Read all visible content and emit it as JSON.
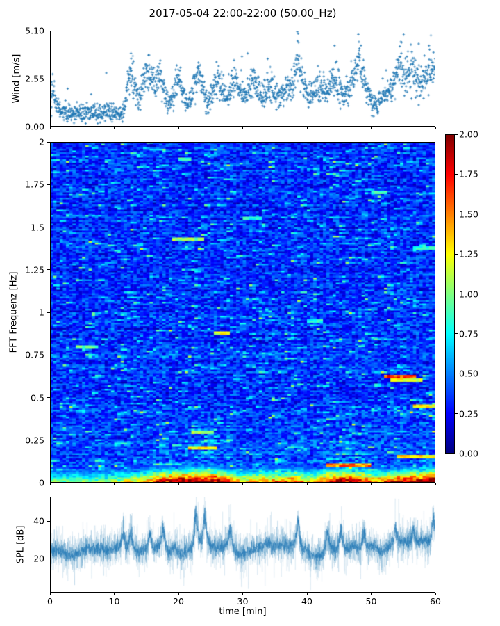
{
  "title": "2017-05-04 22:00-22:00 (50.00_Hz)",
  "colors": {
    "background": "#ffffff",
    "marker": "#1f77b4",
    "spl_line": "#1f77b4",
    "axis": "#000000",
    "text": "#000000"
  },
  "axes": {
    "wind": {
      "ylabel": "Wind [m/s]",
      "ytick_labels": [
        "0.00",
        "2.55",
        "5.10"
      ],
      "ytick_values": [
        0,
        2.55,
        5.1
      ],
      "ylim": [
        0,
        5.1
      ],
      "xlim": [
        0,
        60
      ],
      "xtick_values": [
        0,
        10,
        20,
        30,
        40,
        50,
        60
      ]
    },
    "fft": {
      "ylabel": "FFT Frequenz [Hz]",
      "ytick_labels": [
        "0",
        "0.25",
        "0.5",
        "0.75",
        "1",
        "1.25",
        "1.5",
        "1.75",
        "2"
      ],
      "ytick_values": [
        0,
        0.25,
        0.5,
        0.75,
        1,
        1.25,
        1.5,
        1.75,
        2
      ],
      "ylim": [
        0,
        2
      ],
      "xlim": [
        0,
        60
      ],
      "xtick_values": [
        0,
        10,
        20,
        30,
        40,
        50,
        60
      ]
    },
    "spl": {
      "ylabel": "SPL [dB]",
      "xlabel": "time [min]",
      "ytick_labels": [
        "20",
        "40"
      ],
      "ytick_values": [
        20,
        40
      ],
      "ylim": [
        2,
        53
      ],
      "xlim": [
        0,
        60
      ],
      "xtick_labels": [
        "0",
        "10",
        "20",
        "30",
        "40",
        "50",
        "60"
      ],
      "xtick_values": [
        0,
        10,
        20,
        30,
        40,
        50,
        60
      ]
    }
  },
  "colorbar": {
    "colormap": "jet",
    "lim": [
      0,
      2
    ],
    "tick_labels": [
      "0.00",
      "0.25",
      "0.50",
      "0.75",
      "1.00",
      "1.25",
      "1.50",
      "1.75",
      "2.00"
    ],
    "tick_values": [
      0,
      0.25,
      0.5,
      0.75,
      1,
      1.25,
      1.5,
      1.75,
      2
    ]
  },
  "chart_data": [
    {
      "type": "scatter",
      "name": "wind-speed",
      "title": "",
      "marker": "plus",
      "color": "#1f77b4",
      "xlim": [
        0,
        60
      ],
      "ylim": [
        0,
        5.1
      ],
      "xlabel": "time [min]",
      "ylabel": "Wind [m/s]",
      "n_points": 1800,
      "noise_sd": 0.42,
      "gust_prob": 0.005,
      "seed": 42,
      "envelope": [
        [
          0,
          1.7
        ],
        [
          0.5,
          1.9
        ],
        [
          1,
          1.2
        ],
        [
          2,
          0.85
        ],
        [
          3,
          0.7
        ],
        [
          4,
          0.75
        ],
        [
          5,
          0.7
        ],
        [
          6,
          0.75
        ],
        [
          7,
          0.8
        ],
        [
          8,
          0.7
        ],
        [
          9,
          0.75
        ],
        [
          10,
          0.8
        ],
        [
          11,
          0.65
        ],
        [
          11.6,
          0.9
        ],
        [
          12,
          2.1
        ],
        [
          12.7,
          2.9
        ],
        [
          13.3,
          2.2
        ],
        [
          13.8,
          1.3
        ],
        [
          14.5,
          2.2
        ],
        [
          15.2,
          3.0
        ],
        [
          15.8,
          2.4
        ],
        [
          16.5,
          2.0
        ],
        [
          17,
          2.7
        ],
        [
          17.6,
          2.2
        ],
        [
          18.2,
          1.4
        ],
        [
          19,
          1.2
        ],
        [
          19.6,
          2.3
        ],
        [
          20.2,
          2.5
        ],
        [
          20.8,
          1.8
        ],
        [
          21.3,
          1.1
        ],
        [
          22,
          1.6
        ],
        [
          22.7,
          2.4
        ],
        [
          23.2,
          2.9
        ],
        [
          23.8,
          2.0
        ],
        [
          24.4,
          1.2
        ],
        [
          25,
          1.6
        ],
        [
          25.6,
          2.3
        ],
        [
          26.2,
          2.6
        ],
        [
          27,
          1.8
        ],
        [
          27.6,
          1.3
        ],
        [
          28.3,
          2.1
        ],
        [
          28.9,
          2.6
        ],
        [
          29.5,
          2.0
        ],
        [
          30.2,
          1.5
        ],
        [
          31,
          2.0
        ],
        [
          31.6,
          2.6
        ],
        [
          32.3,
          2.1
        ],
        [
          33,
          1.5
        ],
        [
          33.6,
          1.9
        ],
        [
          34.3,
          2.3
        ],
        [
          35,
          1.9
        ],
        [
          35.7,
          1.6
        ],
        [
          36.4,
          2.1
        ],
        [
          37,
          2.0
        ],
        [
          37.7,
          2.3
        ],
        [
          38.3,
          3.2
        ],
        [
          38.6,
          4.0
        ],
        [
          39,
          2.8
        ],
        [
          39.6,
          2.1
        ],
        [
          40.3,
          1.6
        ],
        [
          41,
          1.9
        ],
        [
          41.7,
          2.3
        ],
        [
          42.4,
          2.1
        ],
        [
          43,
          1.7
        ],
        [
          43.7,
          2.2
        ],
        [
          44.4,
          2.6
        ],
        [
          45,
          2.0
        ],
        [
          45.7,
          1.5
        ],
        [
          46.4,
          1.9
        ],
        [
          47.1,
          2.5
        ],
        [
          47.8,
          3.3
        ],
        [
          48.2,
          3.6
        ],
        [
          48.8,
          2.5
        ],
        [
          49.5,
          1.8
        ],
        [
          50.2,
          1.3
        ],
        [
          51,
          1.1
        ],
        [
          51.7,
          1.6
        ],
        [
          52.4,
          2.1
        ],
        [
          53,
          1.8
        ],
        [
          53.6,
          2.3
        ],
        [
          54.2,
          3.1
        ],
        [
          54.8,
          3.3
        ],
        [
          55.4,
          2.6
        ],
        [
          56,
          2.9
        ],
        [
          56.6,
          3.1
        ],
        [
          57.2,
          2.5
        ],
        [
          57.9,
          2.3
        ],
        [
          58.5,
          2.8
        ],
        [
          59,
          3.1
        ],
        [
          59.5,
          2.9
        ],
        [
          60,
          3.0
        ]
      ],
      "extra_points": [
        [
          38.5,
          5.05
        ],
        [
          38.55,
          4.55
        ],
        [
          44.3,
          4.3
        ],
        [
          48.0,
          4.9
        ],
        [
          48.1,
          4.5
        ],
        [
          54.6,
          4.5
        ],
        [
          57.4,
          4.4
        ],
        [
          59.3,
          4.85
        ],
        [
          59.0,
          4.3
        ],
        [
          12.9,
          3.75
        ],
        [
          15.3,
          3.8
        ],
        [
          23.1,
          3.4
        ],
        [
          33.9,
          3.6
        ]
      ]
    },
    {
      "type": "heatmap",
      "name": "fft-spectrogram",
      "colormap": "jet",
      "clim": [
        0,
        2
      ],
      "xlim": [
        0,
        60
      ],
      "ylim": [
        0,
        2
      ],
      "ylabel": "FFT Frequenz [Hz]",
      "grid_cols": 120,
      "grid_rows": 196,
      "seed": 7,
      "base_level": 0.08,
      "row_bias_max": 0.12,
      "noise_amp": 0.38,
      "streak_prob": 0.05,
      "low_band_fmax": 0.14,
      "low_band_profile": [
        [
          0,
          0.9
        ],
        [
          8,
          0.9
        ],
        [
          12,
          1.1
        ],
        [
          15,
          1.3
        ],
        [
          17,
          1.7
        ],
        [
          20,
          1.9
        ],
        [
          23,
          2.1
        ],
        [
          26,
          1.9
        ],
        [
          28,
          1.5
        ],
        [
          30,
          1.2
        ],
        [
          33,
          1.4
        ],
        [
          36,
          1.3
        ],
        [
          38,
          1.6
        ],
        [
          40,
          1.2
        ],
        [
          42,
          1.3
        ],
        [
          44,
          1.8
        ],
        [
          46,
          1.9
        ],
        [
          48,
          1.8
        ],
        [
          50,
          1.5
        ],
        [
          52,
          1.4
        ],
        [
          54,
          1.7
        ],
        [
          56,
          1.8
        ],
        [
          58,
          1.9
        ],
        [
          60,
          2.1
        ]
      ],
      "features": [
        {
          "f": 1.43,
          "t0": 19,
          "t1": 24,
          "value": 1.05
        },
        {
          "f": 1.38,
          "t0": 56.5,
          "t1": 60,
          "value": 0.85
        },
        {
          "f": 1.9,
          "t0": 20,
          "t1": 22,
          "value": 0.85
        },
        {
          "f": 1.55,
          "t0": 30,
          "t1": 33,
          "value": 0.8
        },
        {
          "f": 1.7,
          "t0": 50,
          "t1": 52.5,
          "value": 0.9
        },
        {
          "f": 0.8,
          "t0": 4,
          "t1": 7.5,
          "value": 0.95
        },
        {
          "f": 0.88,
          "t0": 25.5,
          "t1": 28,
          "value": 1.2
        },
        {
          "f": 0.62,
          "t0": 52,
          "t1": 57,
          "value": 1.6
        },
        {
          "f": 0.6,
          "t0": 53,
          "t1": 58,
          "value": 1.2
        },
        {
          "f": 0.95,
          "t0": 40,
          "t1": 42.5,
          "value": 0.8
        },
        {
          "f": 0.3,
          "t0": 22,
          "t1": 25.5,
          "value": 1.1
        },
        {
          "f": 0.2,
          "t0": 21.5,
          "t1": 26,
          "value": 1.3
        },
        {
          "f": 0.45,
          "t0": 56.5,
          "t1": 60,
          "value": 1.25
        },
        {
          "f": 0.1,
          "t0": 43,
          "t1": 50,
          "value": 1.5
        },
        {
          "f": 0.15,
          "t0": 54,
          "t1": 60,
          "value": 1.3
        }
      ]
    },
    {
      "type": "line",
      "name": "spl",
      "color": "#1f77b4",
      "xlim": [
        0,
        60
      ],
      "ylim": [
        2,
        53
      ],
      "xlabel": "time [min]",
      "ylabel": "SPL [dB]",
      "seed": 99,
      "noise_sd": 3.0,
      "n_steps": 2600,
      "envelope": [
        [
          0,
          24
        ],
        [
          1,
          24.5
        ],
        [
          2,
          23
        ],
        [
          3,
          22
        ],
        [
          4,
          22.5
        ],
        [
          5,
          24
        ],
        [
          6,
          25
        ],
        [
          7,
          25.5
        ],
        [
          8,
          25
        ],
        [
          9,
          24.5
        ],
        [
          10,
          25.5
        ],
        [
          11,
          27
        ],
        [
          11.5,
          27.5
        ],
        [
          12,
          26
        ],
        [
          12.5,
          27.5
        ],
        [
          13,
          25.5
        ],
        [
          14,
          23.5
        ],
        [
          15,
          25.5
        ],
        [
          15.5,
          27.5
        ],
        [
          16,
          26
        ],
        [
          17,
          27
        ],
        [
          17.6,
          29.5
        ],
        [
          18,
          26.5
        ],
        [
          18.5,
          23.5
        ],
        [
          19,
          24.5
        ],
        [
          19.5,
          26.5
        ],
        [
          20,
          23
        ],
        [
          20.5,
          22
        ],
        [
          21,
          23.5
        ],
        [
          21.8,
          25
        ],
        [
          22.4,
          28
        ],
        [
          22.8,
          32
        ],
        [
          23.2,
          30
        ],
        [
          23.6,
          28.5
        ],
        [
          24.1,
          33
        ],
        [
          24.5,
          30
        ],
        [
          25,
          27.5
        ],
        [
          26,
          25.5
        ],
        [
          26.5,
          26
        ],
        [
          27,
          26.5
        ],
        [
          27.5,
          28
        ],
        [
          28.1,
          30
        ],
        [
          28.6,
          25.5
        ],
        [
          29,
          23
        ],
        [
          29.5,
          22
        ],
        [
          30,
          22.5
        ],
        [
          31,
          24
        ],
        [
          32,
          25.5
        ],
        [
          33,
          26.5
        ],
        [
          34,
          28
        ],
        [
          34.5,
          27
        ],
        [
          35,
          26.5
        ],
        [
          36,
          28
        ],
        [
          36.5,
          27
        ],
        [
          37,
          26
        ],
        [
          37.5,
          27
        ],
        [
          38,
          27.5
        ],
        [
          38.6,
          31
        ],
        [
          39,
          26.5
        ],
        [
          39.5,
          25
        ],
        [
          40,
          24
        ],
        [
          40.5,
          22.5
        ],
        [
          41,
          21.5
        ],
        [
          41.5,
          21
        ],
        [
          42,
          21.5
        ],
        [
          42.5,
          23
        ],
        [
          43,
          26
        ],
        [
          43.5,
          27.5
        ],
        [
          44,
          26
        ],
        [
          44.5,
          25
        ],
        [
          45,
          26.5
        ],
        [
          45.5,
          27.5
        ],
        [
          46,
          25.5
        ],
        [
          46.5,
          25
        ],
        [
          47,
          26
        ],
        [
          47.5,
          27
        ],
        [
          48,
          26
        ],
        [
          48.5,
          27.5
        ],
        [
          49,
          26
        ],
        [
          49.5,
          25
        ],
        [
          50,
          26
        ],
        [
          50.5,
          26.5
        ],
        [
          51,
          25
        ],
        [
          51.5,
          24
        ],
        [
          52,
          24.5
        ],
        [
          52.6,
          25.5
        ],
        [
          53.2,
          28
        ],
        [
          53.8,
          30.5
        ],
        [
          54.3,
          29
        ],
        [
          55,
          29.5
        ],
        [
          55.5,
          28.5
        ],
        [
          56,
          29.5
        ],
        [
          56.5,
          30
        ],
        [
          57,
          28.5
        ],
        [
          57.5,
          29.5
        ],
        [
          58,
          29
        ],
        [
          58.5,
          30
        ],
        [
          59,
          28.5
        ],
        [
          59.5,
          31
        ],
        [
          60,
          29.5
        ]
      ],
      "peaks_up": [
        [
          11.4,
          35
        ],
        [
          12.6,
          36
        ],
        [
          15.6,
          36
        ],
        [
          17.6,
          38
        ],
        [
          22.7,
          50
        ],
        [
          24.1,
          48
        ],
        [
          28.1,
          38
        ],
        [
          38.6,
          42
        ],
        [
          43.2,
          36
        ],
        [
          45.3,
          37
        ],
        [
          48.9,
          37
        ],
        [
          53.8,
          38
        ],
        [
          56.6,
          37
        ],
        [
          59.7,
          45
        ]
      ],
      "spikes_down": [
        [
          3.8,
          6
        ],
        [
          8.3,
          11
        ],
        [
          20.3,
          9
        ],
        [
          29.8,
          5
        ],
        [
          33.0,
          13
        ],
        [
          44.9,
          13
        ],
        [
          51.6,
          14
        ]
      ]
    }
  ]
}
